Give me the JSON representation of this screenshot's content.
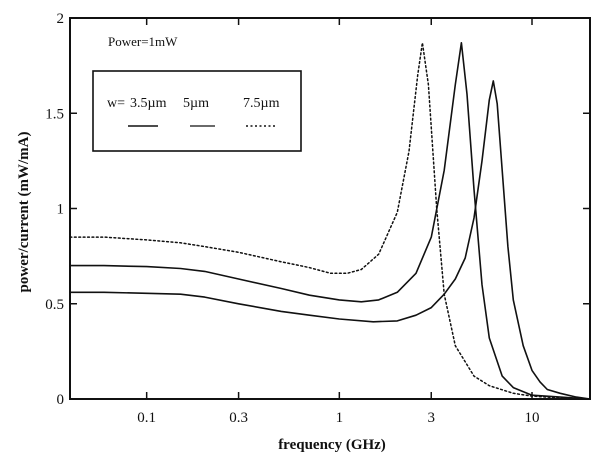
{
  "chart_data": {
    "type": "line",
    "title": "",
    "xlabel": "frequency (GHz)",
    "ylabel": "power/current (mW/mA)",
    "x_scale": "log",
    "xlim": [
      0.04,
      20
    ],
    "ylim": [
      0,
      2
    ],
    "x_ticks": [
      0.1,
      0.3,
      1,
      3,
      10
    ],
    "x_tick_labels": [
      "0.1",
      "0.3",
      "1",
      "3",
      "10"
    ],
    "y_ticks": [
      0,
      0.5,
      1,
      1.5,
      2
    ],
    "y_tick_labels": [
      "0",
      "0.5",
      "1",
      "1.5",
      "2"
    ],
    "grid": false,
    "annotation": "Power=1mW",
    "legend": {
      "prefix": "w=",
      "placement": "top-left",
      "entries": [
        "3.5µm",
        "5µm",
        "7.5µm"
      ]
    },
    "series": [
      {
        "name": "3.5µm",
        "line": "solid",
        "points": [
          [
            0.04,
            0.56
          ],
          [
            0.06,
            0.56
          ],
          [
            0.1,
            0.555
          ],
          [
            0.15,
            0.55
          ],
          [
            0.2,
            0.535
          ],
          [
            0.3,
            0.5
          ],
          [
            0.5,
            0.46
          ],
          [
            0.7,
            0.44
          ],
          [
            1,
            0.42
          ],
          [
            1.5,
            0.405
          ],
          [
            2,
            0.41
          ],
          [
            2.5,
            0.44
          ],
          [
            3,
            0.48
          ],
          [
            3.5,
            0.55
          ],
          [
            4,
            0.63
          ],
          [
            4.5,
            0.74
          ],
          [
            5,
            0.95
          ],
          [
            5.5,
            1.25
          ],
          [
            6,
            1.57
          ],
          [
            6.3,
            1.67
          ],
          [
            6.6,
            1.55
          ],
          [
            7,
            1.2
          ],
          [
            7.5,
            0.8
          ],
          [
            8,
            0.52
          ],
          [
            9,
            0.28
          ],
          [
            10,
            0.15
          ],
          [
            11,
            0.09
          ],
          [
            12,
            0.05
          ],
          [
            14,
            0.03
          ],
          [
            17,
            0.01
          ],
          [
            20,
            0
          ]
        ]
      },
      {
        "name": "5µm",
        "line": "solid",
        "points": [
          [
            0.04,
            0.7
          ],
          [
            0.06,
            0.7
          ],
          [
            0.1,
            0.695
          ],
          [
            0.15,
            0.685
          ],
          [
            0.2,
            0.67
          ],
          [
            0.3,
            0.63
          ],
          [
            0.5,
            0.58
          ],
          [
            0.7,
            0.545
          ],
          [
            1,
            0.52
          ],
          [
            1.3,
            0.51
          ],
          [
            1.6,
            0.52
          ],
          [
            2,
            0.56
          ],
          [
            2.5,
            0.66
          ],
          [
            3,
            0.85
          ],
          [
            3.5,
            1.2
          ],
          [
            4,
            1.65
          ],
          [
            4.3,
            1.87
          ],
          [
            4.6,
            1.6
          ],
          [
            5,
            1.1
          ],
          [
            5.5,
            0.6
          ],
          [
            6,
            0.32
          ],
          [
            7,
            0.12
          ],
          [
            8,
            0.06
          ],
          [
            10,
            0.02
          ],
          [
            14,
            0.01
          ],
          [
            20,
            0
          ]
        ]
      },
      {
        "name": "7.5µm",
        "line": "dotted",
        "points": [
          [
            0.04,
            0.85
          ],
          [
            0.06,
            0.85
          ],
          [
            0.1,
            0.835
          ],
          [
            0.15,
            0.82
          ],
          [
            0.2,
            0.8
          ],
          [
            0.3,
            0.77
          ],
          [
            0.5,
            0.72
          ],
          [
            0.7,
            0.69
          ],
          [
            0.9,
            0.66
          ],
          [
            1.1,
            0.66
          ],
          [
            1.3,
            0.68
          ],
          [
            1.6,
            0.76
          ],
          [
            2,
            0.98
          ],
          [
            2.3,
            1.3
          ],
          [
            2.55,
            1.7
          ],
          [
            2.7,
            1.87
          ],
          [
            2.9,
            1.65
          ],
          [
            3.2,
            1.0
          ],
          [
            3.5,
            0.55
          ],
          [
            4,
            0.28
          ],
          [
            5,
            0.12
          ],
          [
            6,
            0.07
          ],
          [
            8,
            0.03
          ],
          [
            10,
            0.015
          ],
          [
            14,
            0.005
          ],
          [
            20,
            0
          ]
        ]
      }
    ]
  }
}
